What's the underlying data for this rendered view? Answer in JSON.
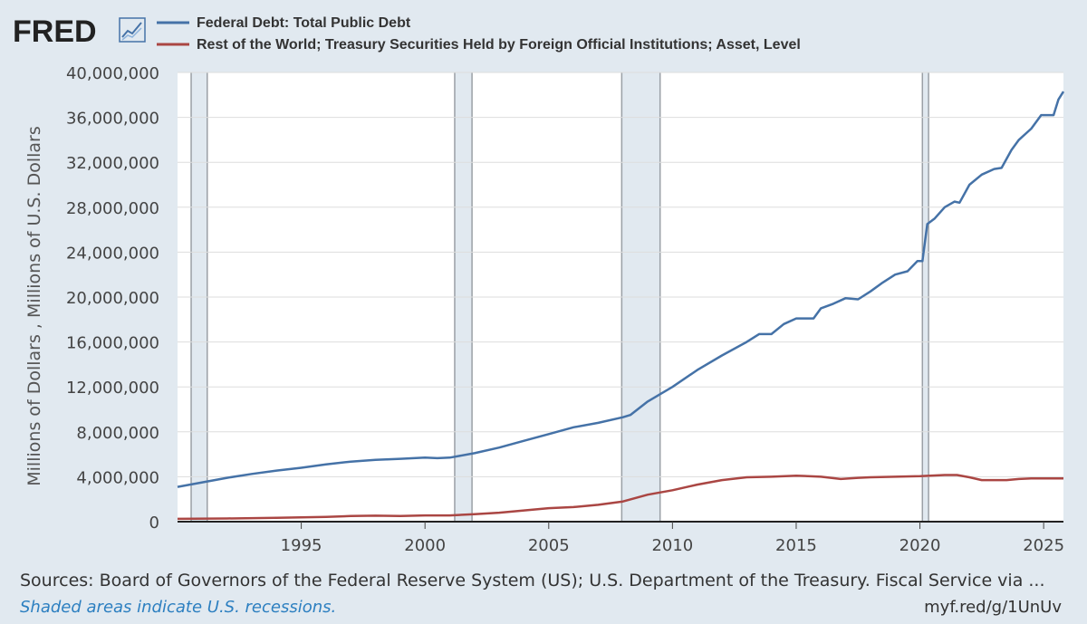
{
  "logo": {
    "text": "FRED",
    "icon": "trend-line-icon"
  },
  "colors": {
    "background": "#e1e9f0",
    "plot_background": "#ffffff",
    "series1": "#4572a7",
    "series2": "#aa4643",
    "recession": "#e1e9f0",
    "grid": "#dddddd"
  },
  "footer": {
    "sources": "Sources: Board of Governors of the Federal Reserve System (US); U.S. Department of the Treasury. Fiscal Service via ...",
    "recession_note": "Shaded areas indicate U.S. recessions.",
    "short_url": "myf.red/g/1UnUv"
  },
  "chart_data": {
    "type": "line",
    "ylabel": "Millions of Dollars , Millions of U.S. Dollars",
    "xlabel": "",
    "xlim": [
      1990.0,
      2025.8
    ],
    "ylim": [
      0,
      40000000
    ],
    "yticks": [
      0,
      4000000,
      8000000,
      12000000,
      16000000,
      20000000,
      24000000,
      28000000,
      32000000,
      36000000,
      40000000
    ],
    "ytick_labels": [
      "0",
      "4,000,000",
      "8,000,000",
      "12,000,000",
      "16,000,000",
      "20,000,000",
      "24,000,000",
      "28,000,000",
      "32,000,000",
      "36,000,000",
      "40,000,000"
    ],
    "xticks": [
      1995,
      2000,
      2005,
      2010,
      2015,
      2020,
      2025
    ],
    "xtick_labels": [
      "1995",
      "2000",
      "2005",
      "2010",
      "2015",
      "2020",
      "2025"
    ],
    "recessions": [
      [
        1990.55,
        1991.2
      ],
      [
        2001.2,
        2001.9
      ],
      [
        2007.95,
        2009.5
      ],
      [
        2020.1,
        2020.35
      ]
    ],
    "series": [
      {
        "name": "Federal Debt: Total Public Debt",
        "color": "#4572a7",
        "points": [
          [
            1990.0,
            3100000
          ],
          [
            1991.0,
            3500000
          ],
          [
            1992.0,
            3900000
          ],
          [
            1993.0,
            4250000
          ],
          [
            1994.0,
            4550000
          ],
          [
            1995.0,
            4800000
          ],
          [
            1996.0,
            5100000
          ],
          [
            1997.0,
            5350000
          ],
          [
            1998.0,
            5500000
          ],
          [
            1999.0,
            5600000
          ],
          [
            2000.0,
            5700000
          ],
          [
            2000.5,
            5650000
          ],
          [
            2001.0,
            5700000
          ],
          [
            2002.0,
            6100000
          ],
          [
            2003.0,
            6600000
          ],
          [
            2004.0,
            7200000
          ],
          [
            2005.0,
            7800000
          ],
          [
            2006.0,
            8400000
          ],
          [
            2007.0,
            8800000
          ],
          [
            2008.0,
            9300000
          ],
          [
            2008.3,
            9500000
          ],
          [
            2009.0,
            10700000
          ],
          [
            2010.0,
            12000000
          ],
          [
            2011.0,
            13500000
          ],
          [
            2012.0,
            14800000
          ],
          [
            2013.0,
            16000000
          ],
          [
            2013.5,
            16700000
          ],
          [
            2014.0,
            16700000
          ],
          [
            2014.5,
            17600000
          ],
          [
            2015.0,
            18100000
          ],
          [
            2015.7,
            18100000
          ],
          [
            2016.0,
            19000000
          ],
          [
            2016.5,
            19400000
          ],
          [
            2017.0,
            19900000
          ],
          [
            2017.5,
            19800000
          ],
          [
            2018.0,
            20500000
          ],
          [
            2018.5,
            21300000
          ],
          [
            2019.0,
            22000000
          ],
          [
            2019.5,
            22300000
          ],
          [
            2019.9,
            23200000
          ],
          [
            2020.1,
            23200000
          ],
          [
            2020.3,
            26500000
          ],
          [
            2020.6,
            27000000
          ],
          [
            2021.0,
            28000000
          ],
          [
            2021.4,
            28500000
          ],
          [
            2021.6,
            28400000
          ],
          [
            2022.0,
            30000000
          ],
          [
            2022.5,
            30900000
          ],
          [
            2023.0,
            31400000
          ],
          [
            2023.3,
            31500000
          ],
          [
            2023.7,
            33100000
          ],
          [
            2024.0,
            34000000
          ],
          [
            2024.5,
            35000000
          ],
          [
            2024.9,
            36200000
          ],
          [
            2025.4,
            36200000
          ],
          [
            2025.6,
            37600000
          ],
          [
            2025.8,
            38300000
          ]
        ]
      },
      {
        "name": "Rest of the World; Treasury Securities Held by Foreign Official Institutions; Asset, Level",
        "color": "#aa4643",
        "points": [
          [
            1990.0,
            250000
          ],
          [
            1992.0,
            280000
          ],
          [
            1994.0,
            350000
          ],
          [
            1996.0,
            430000
          ],
          [
            1997.0,
            500000
          ],
          [
            1998.0,
            530000
          ],
          [
            1999.0,
            500000
          ],
          [
            2000.0,
            560000
          ],
          [
            2001.0,
            560000
          ],
          [
            2002.0,
            660000
          ],
          [
            2003.0,
            800000
          ],
          [
            2004.0,
            1000000
          ],
          [
            2005.0,
            1200000
          ],
          [
            2006.0,
            1300000
          ],
          [
            2007.0,
            1500000
          ],
          [
            2008.0,
            1800000
          ],
          [
            2009.0,
            2400000
          ],
          [
            2010.0,
            2800000
          ],
          [
            2011.0,
            3300000
          ],
          [
            2012.0,
            3700000
          ],
          [
            2013.0,
            3950000
          ],
          [
            2014.0,
            4000000
          ],
          [
            2015.0,
            4100000
          ],
          [
            2016.0,
            4000000
          ],
          [
            2016.8,
            3800000
          ],
          [
            2017.5,
            3900000
          ],
          [
            2018.0,
            3950000
          ],
          [
            2019.0,
            4000000
          ],
          [
            2020.0,
            4050000
          ],
          [
            2021.0,
            4150000
          ],
          [
            2021.5,
            4150000
          ],
          [
            2022.0,
            3950000
          ],
          [
            2022.5,
            3700000
          ],
          [
            2023.0,
            3700000
          ],
          [
            2023.5,
            3700000
          ],
          [
            2024.0,
            3800000
          ],
          [
            2024.5,
            3850000
          ],
          [
            2025.0,
            3850000
          ],
          [
            2025.8,
            3850000
          ]
        ]
      }
    ]
  }
}
